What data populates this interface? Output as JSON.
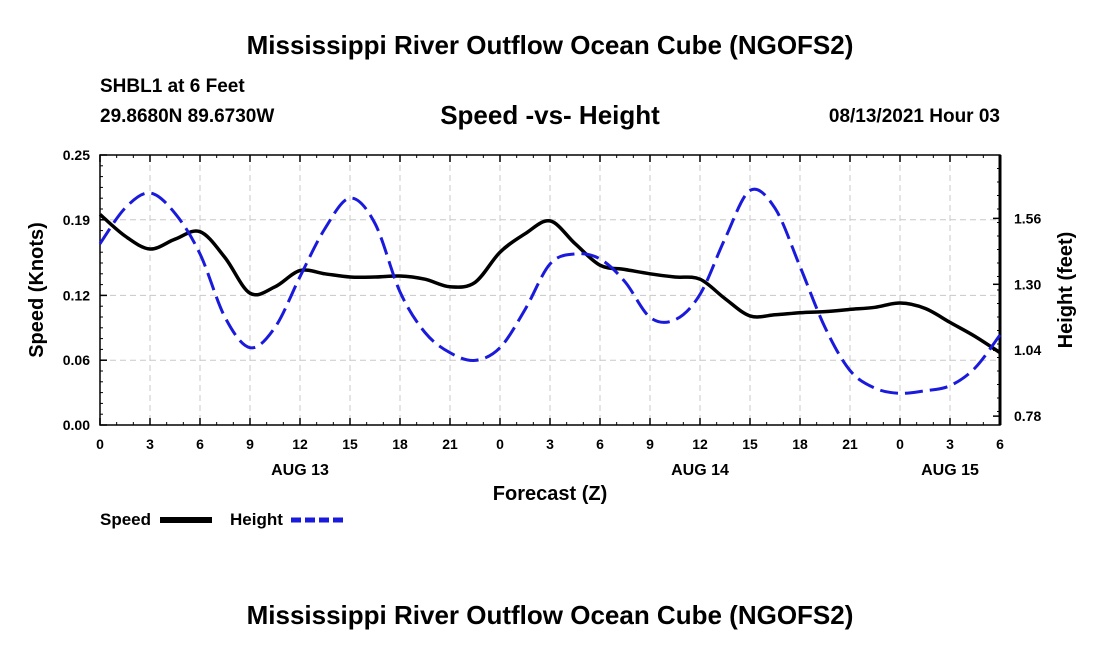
{
  "header": {
    "title": "Mississippi River Outflow Ocean Cube (NGOFS2)",
    "station": "SHBL1 at 6 Feet",
    "coords": "29.8680N  89.6730W",
    "subtitle": "Speed -vs- Height",
    "datetime": "08/13/2021 Hour 03"
  },
  "footer": {
    "title": "Mississippi River Outflow Ocean Cube (NGOFS2)"
  },
  "chart_data": {
    "type": "line",
    "title": "Speed -vs- Height",
    "xlabel": "Forecast (Z)",
    "ylabel": "Speed (Knots)",
    "y2label": "Height (feet)",
    "xlim": [
      0,
      54
    ],
    "ylim": [
      0,
      0.25
    ],
    "y2lim": [
      0.745,
      1.81
    ],
    "x_ticks": [
      0,
      3,
      6,
      9,
      12,
      15,
      18,
      21,
      24,
      27,
      30,
      33,
      36,
      39,
      42,
      45,
      48,
      51,
      54
    ],
    "x_tick_labels": [
      "0",
      "3",
      "6",
      "9",
      "12",
      "15",
      "18",
      "21",
      "0",
      "3",
      "6",
      "9",
      "12",
      "15",
      "18",
      "21",
      "0",
      "3",
      "6"
    ],
    "date_labels": [
      {
        "x": 12,
        "label": "AUG 13"
      },
      {
        "x": 36,
        "label": "AUG 14"
      },
      {
        "x": 51,
        "label": "AUG 15"
      }
    ],
    "y_ticks": [
      0.0,
      0.06,
      0.12,
      0.19,
      0.25
    ],
    "y_tick_labels": [
      "0.00",
      "0.06",
      "0.12",
      "0.19",
      "0.25"
    ],
    "y2_ticks": [
      0.78,
      1.04,
      1.3,
      1.56
    ],
    "y2_tick_labels": [
      "0.78",
      "1.04",
      "1.30",
      "1.56"
    ],
    "grid": true,
    "legend": {
      "position": "bottom-left",
      "items": [
        "Speed",
        "Height"
      ]
    },
    "series": [
      {
        "name": "Speed",
        "axis": "left",
        "color": "#000000",
        "style": "solid",
        "x": [
          0,
          1.5,
          3,
          4.5,
          6,
          7.5,
          9,
          10.5,
          12,
          13.5,
          15,
          16.5,
          18,
          19.5,
          21,
          22.5,
          24,
          25.5,
          27,
          28.5,
          30,
          31.5,
          33,
          34.5,
          36,
          37.5,
          39,
          40.5,
          42,
          43.5,
          45,
          46.5,
          48,
          49.5,
          51,
          52.5,
          54
        ],
        "values": [
          0.195,
          0.175,
          0.163,
          0.172,
          0.179,
          0.155,
          0.122,
          0.128,
          0.143,
          0.14,
          0.137,
          0.137,
          0.138,
          0.135,
          0.128,
          0.132,
          0.16,
          0.177,
          0.189,
          0.168,
          0.148,
          0.144,
          0.14,
          0.137,
          0.135,
          0.117,
          0.101,
          0.102,
          0.104,
          0.105,
          0.107,
          0.109,
          0.113,
          0.108,
          0.095,
          0.082,
          0.067
        ]
      },
      {
        "name": "Height",
        "axis": "right",
        "color": "#1a1adc",
        "style": "dashed",
        "x": [
          0,
          1.5,
          3,
          4.5,
          6,
          7.5,
          9,
          10.5,
          12,
          13.5,
          15,
          16.5,
          18,
          19.5,
          21,
          22.5,
          24,
          25.5,
          27,
          28.5,
          30,
          31.5,
          33,
          34.5,
          36,
          37.5,
          39,
          40.5,
          42,
          43.5,
          45,
          46.5,
          48,
          49.5,
          51,
          52.5,
          54
        ],
        "values": [
          1.46,
          1.6,
          1.66,
          1.58,
          1.42,
          1.17,
          1.05,
          1.13,
          1.33,
          1.52,
          1.64,
          1.54,
          1.27,
          1.11,
          1.03,
          1.0,
          1.05,
          1.2,
          1.38,
          1.42,
          1.4,
          1.31,
          1.17,
          1.16,
          1.26,
          1.48,
          1.67,
          1.6,
          1.37,
          1.13,
          0.96,
          0.89,
          0.87,
          0.88,
          0.9,
          0.97,
          1.1
        ]
      }
    ]
  }
}
